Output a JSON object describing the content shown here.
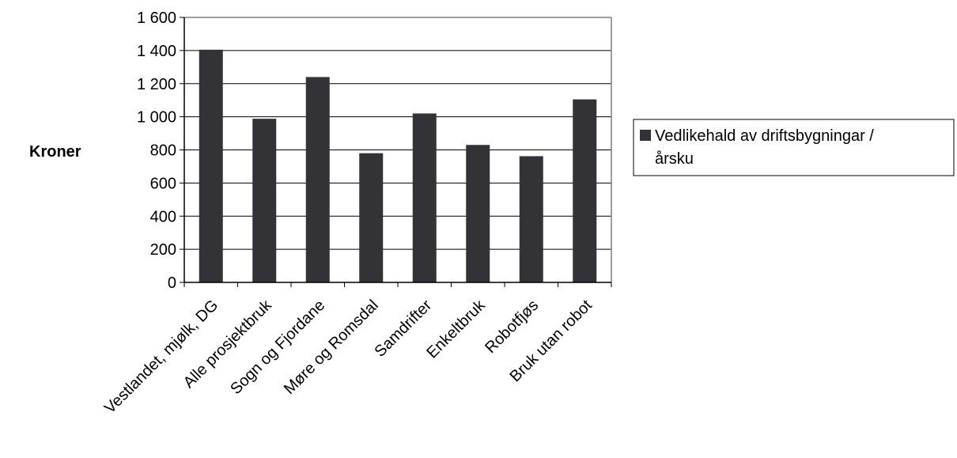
{
  "chart_data": {
    "type": "bar",
    "title": "",
    "xlabel": "",
    "ylabel": "Kroner",
    "ylim": [
      0,
      1600
    ],
    "ytick_step": 200,
    "ytick_labels": [
      "0",
      "200",
      "400",
      "600",
      "800",
      "1 000",
      "1 200",
      "1 400",
      "1 600"
    ],
    "grid": true,
    "legend_position": "right",
    "categories": [
      "Vestlandet, mjølk, DG",
      "Alle prosjektbruk",
      "Sogn og Fjordane",
      "Møre og Romsdal",
      "Samdrifter",
      "Enkeltbruk",
      "Robotfjøs",
      "Bruk utan robot"
    ],
    "series": [
      {
        "name": "Vedlikehald av driftsbygningar / årsku",
        "legend_lines": [
          "Vedlikehald av driftsbygningar /",
          "årsku"
        ],
        "color": "#333236",
        "values": [
          1405,
          988,
          1240,
          780,
          1020,
          830,
          762,
          1105
        ]
      }
    ],
    "colors": {
      "bar": "#333236",
      "gridline": "#000000",
      "plot_border": "#7f7f7f"
    }
  }
}
